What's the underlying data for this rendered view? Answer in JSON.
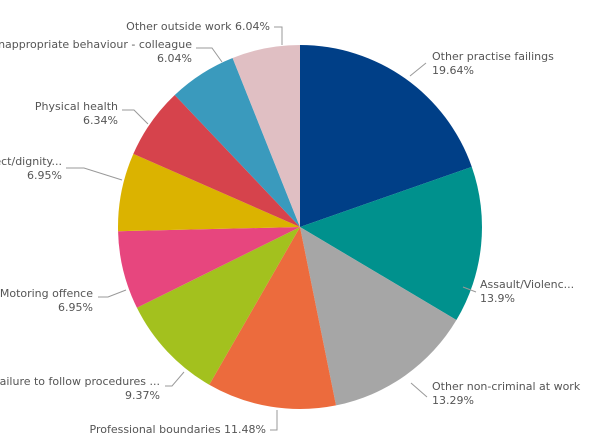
{
  "chart_data": {
    "type": "pie",
    "title": "",
    "start": "top",
    "direction": "clockwise",
    "slices": [
      {
        "label": "Other practise failings",
        "value": 19.64,
        "value_label": "19.64%",
        "color": "#003f87"
      },
      {
        "label": "Assault/Violenc...",
        "value": 13.9,
        "value_label": "13.9%",
        "color": "#00918d"
      },
      {
        "label": "Other non-criminal at work",
        "value": 13.29,
        "value_label": "13.29%",
        "color": "#a6a6a6"
      },
      {
        "label": "Professional boundaries",
        "value": 11.48,
        "value_label": "11.48%",
        "color": "#ec6b3d"
      },
      {
        "label": "Failure to follow procedures ...",
        "value": 9.37,
        "value_label": "9.37%",
        "color": "#a3c11e"
      },
      {
        "label": "Motoring offence",
        "value": 6.95,
        "value_label": "6.95%",
        "color": "#e7467e"
      },
      {
        "label": "Respect/dignity...",
        "value": 6.95,
        "value_label": "6.95%",
        "color": "#dbb300"
      },
      {
        "label": "Physical health",
        "value": 6.34,
        "value_label": "6.34%",
        "color": "#d6434c"
      },
      {
        "label": "Inappropriate behaviour - colleague",
        "value": 6.04,
        "value_label": "6.04%",
        "color": "#3a9abd"
      },
      {
        "label": "Other outside work",
        "value": 6.04,
        "value_label": "6.04%",
        "color": "#e0bfc3"
      }
    ]
  }
}
